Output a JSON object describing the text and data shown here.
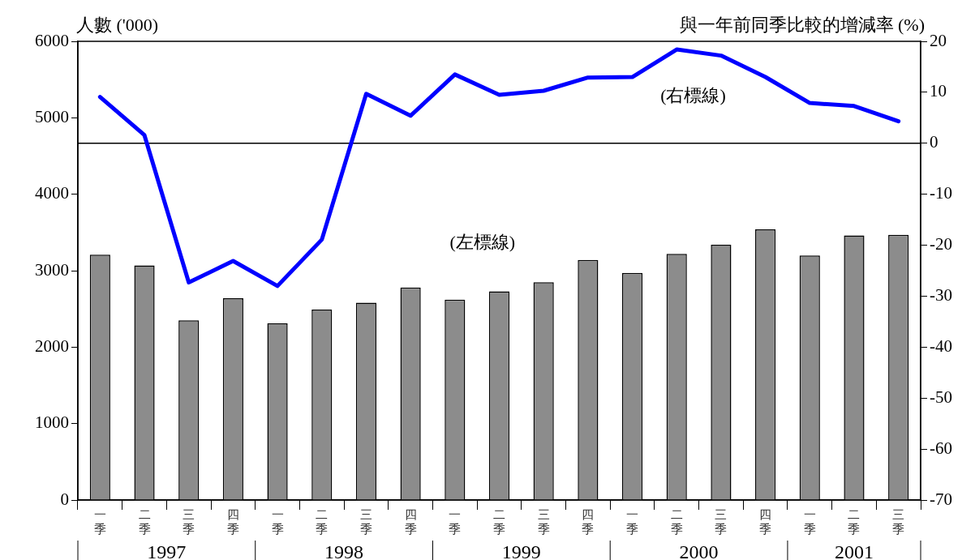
{
  "chart_data": {
    "type": "bar",
    "ylabel": "人數 ('000)",
    "y2label": "與一年前同季比較的增減率 (%)",
    "categories": [
      "一季",
      "二季",
      "三季",
      "四季",
      "一季",
      "二季",
      "三季",
      "四季",
      "一季",
      "二季",
      "三季",
      "四季",
      "一季",
      "二季",
      "三季",
      "四季",
      "一季",
      "二季",
      "三季"
    ],
    "series": [
      {
        "color": "#8c8c8c",
        "values": [
          3210,
          3070,
          2350,
          2640,
          2310,
          2490,
          2580,
          2780,
          2620,
          2730,
          2850,
          3140,
          2970,
          3220,
          3340,
          3540,
          3200,
          3460,
          3470
        ]
      },
      {
        "type": "line",
        "axis": "y2",
        "color": "#0000ff",
        "values": [
          9.1,
          1.6,
          -27.3,
          -23.1,
          -28.0,
          -18.9,
          9.7,
          5.4,
          13.5,
          9.5,
          10.3,
          12.9,
          13.0,
          18.4,
          17.2,
          13.0,
          7.9,
          7.3,
          4.3
        ]
      }
    ],
    "ylim": [
      0,
      6000
    ],
    "yticks": [
      0,
      1000,
      2000,
      3000,
      4000,
      5000,
      6000
    ],
    "y2lim": [
      -70,
      20
    ],
    "y2ticks": [
      -70,
      -60,
      -50,
      -40,
      -30,
      -20,
      -10,
      0,
      10,
      20
    ],
    "ref_lines": [
      {
        "axis": "y2",
        "value": 0,
        "color": "#000000"
      }
    ],
    "annotations": [
      "(右標線)",
      "(左標線)",
      "1997",
      "1998",
      "1999",
      "2000",
      "2001"
    ],
    "grid": false,
    "legend": false,
    "marker": "none",
    "line_style": "solid"
  }
}
